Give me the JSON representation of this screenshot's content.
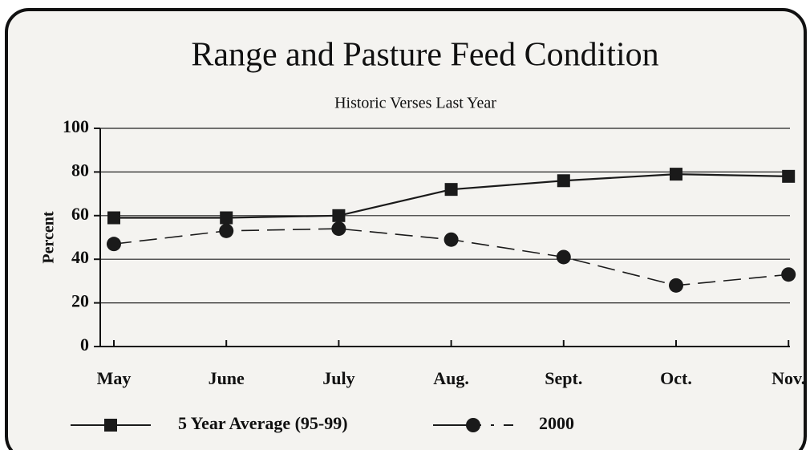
{
  "chart_data": {
    "type": "line",
    "title": "Range and Pasture Feed Condition",
    "subtitle": "Historic Verses Last Year",
    "y_label": "Percent",
    "categories": [
      "May",
      "June",
      "July",
      "Aug.",
      "Sept.",
      "Oct.",
      "Nov."
    ],
    "series": [
      {
        "name": "5 Year Average (95-99)",
        "color": "#1a1a1a",
        "line_style": "solid",
        "marker": "square",
        "values": [
          59,
          59,
          60,
          72,
          76,
          79,
          78
        ]
      },
      {
        "name": "2000",
        "color": "#1a1a1a",
        "line_style": "dashed",
        "marker": "circle",
        "values": [
          47,
          53,
          54,
          49,
          41,
          28,
          33
        ]
      }
    ],
    "ylim": [
      0,
      100
    ],
    "yticks": [
      0,
      20,
      40,
      60,
      80,
      100
    ],
    "grid": true,
    "legend": "bottom"
  }
}
